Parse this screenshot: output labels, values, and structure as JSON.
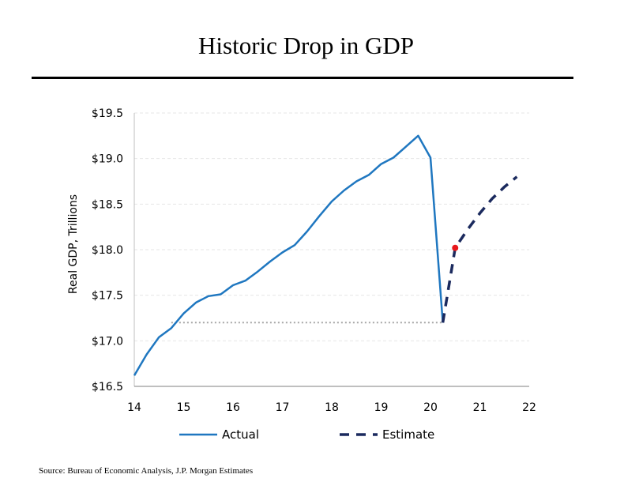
{
  "page": {
    "title": "Historic Drop in GDP",
    "source": "Source: Bureau of Economic Analysis, J.P. Morgan Estimates"
  },
  "colors": {
    "actual": "#1f77c0",
    "estimate": "#1b2a5e",
    "marker": "#e8181c",
    "reference": "#a6a6a6",
    "grid": "#e6e6e6"
  },
  "chart_data": {
    "type": "line",
    "title": "Historic Drop in GDP",
    "ylabel": "Real GDP, Trillions",
    "xlabel": "",
    "xlim": [
      14,
      22
    ],
    "ylim": [
      16.5,
      19.5
    ],
    "x_ticks": [
      "14",
      "15",
      "16",
      "17",
      "18",
      "19",
      "20",
      "21",
      "22"
    ],
    "y_ticks": [
      "$16.5",
      "$17.0",
      "$17.5",
      "$18.0",
      "$18.5",
      "$19.0",
      "$19.5"
    ],
    "grid": true,
    "legend_position": "bottom",
    "series": [
      {
        "name": "Actual",
        "style": "solid",
        "x": [
          14.0,
          14.25,
          14.5,
          14.75,
          15.0,
          15.25,
          15.5,
          15.75,
          16.0,
          16.25,
          16.5,
          16.75,
          17.0,
          17.25,
          17.5,
          17.75,
          18.0,
          18.25,
          18.5,
          18.75,
          19.0,
          19.25,
          19.5,
          19.75,
          20.0,
          20.25
        ],
        "y": [
          16.62,
          16.85,
          17.04,
          17.14,
          17.3,
          17.42,
          17.49,
          17.51,
          17.61,
          17.66,
          17.76,
          17.87,
          17.97,
          18.05,
          18.2,
          18.37,
          18.53,
          18.65,
          18.75,
          18.82,
          18.94,
          19.01,
          19.13,
          19.25,
          19.01,
          17.2
        ]
      },
      {
        "name": "Estimate",
        "style": "dashed",
        "x": [
          20.25,
          20.5,
          20.75,
          21.0,
          21.25,
          21.5,
          21.75
        ],
        "y": [
          17.2,
          18.02,
          18.22,
          18.4,
          18.56,
          18.69,
          18.8
        ]
      }
    ],
    "reference_line": {
      "y": 17.2,
      "x_start": 14.75,
      "x_end": 20.25
    },
    "highlight_point": {
      "x": 20.5,
      "y": 18.02
    }
  }
}
